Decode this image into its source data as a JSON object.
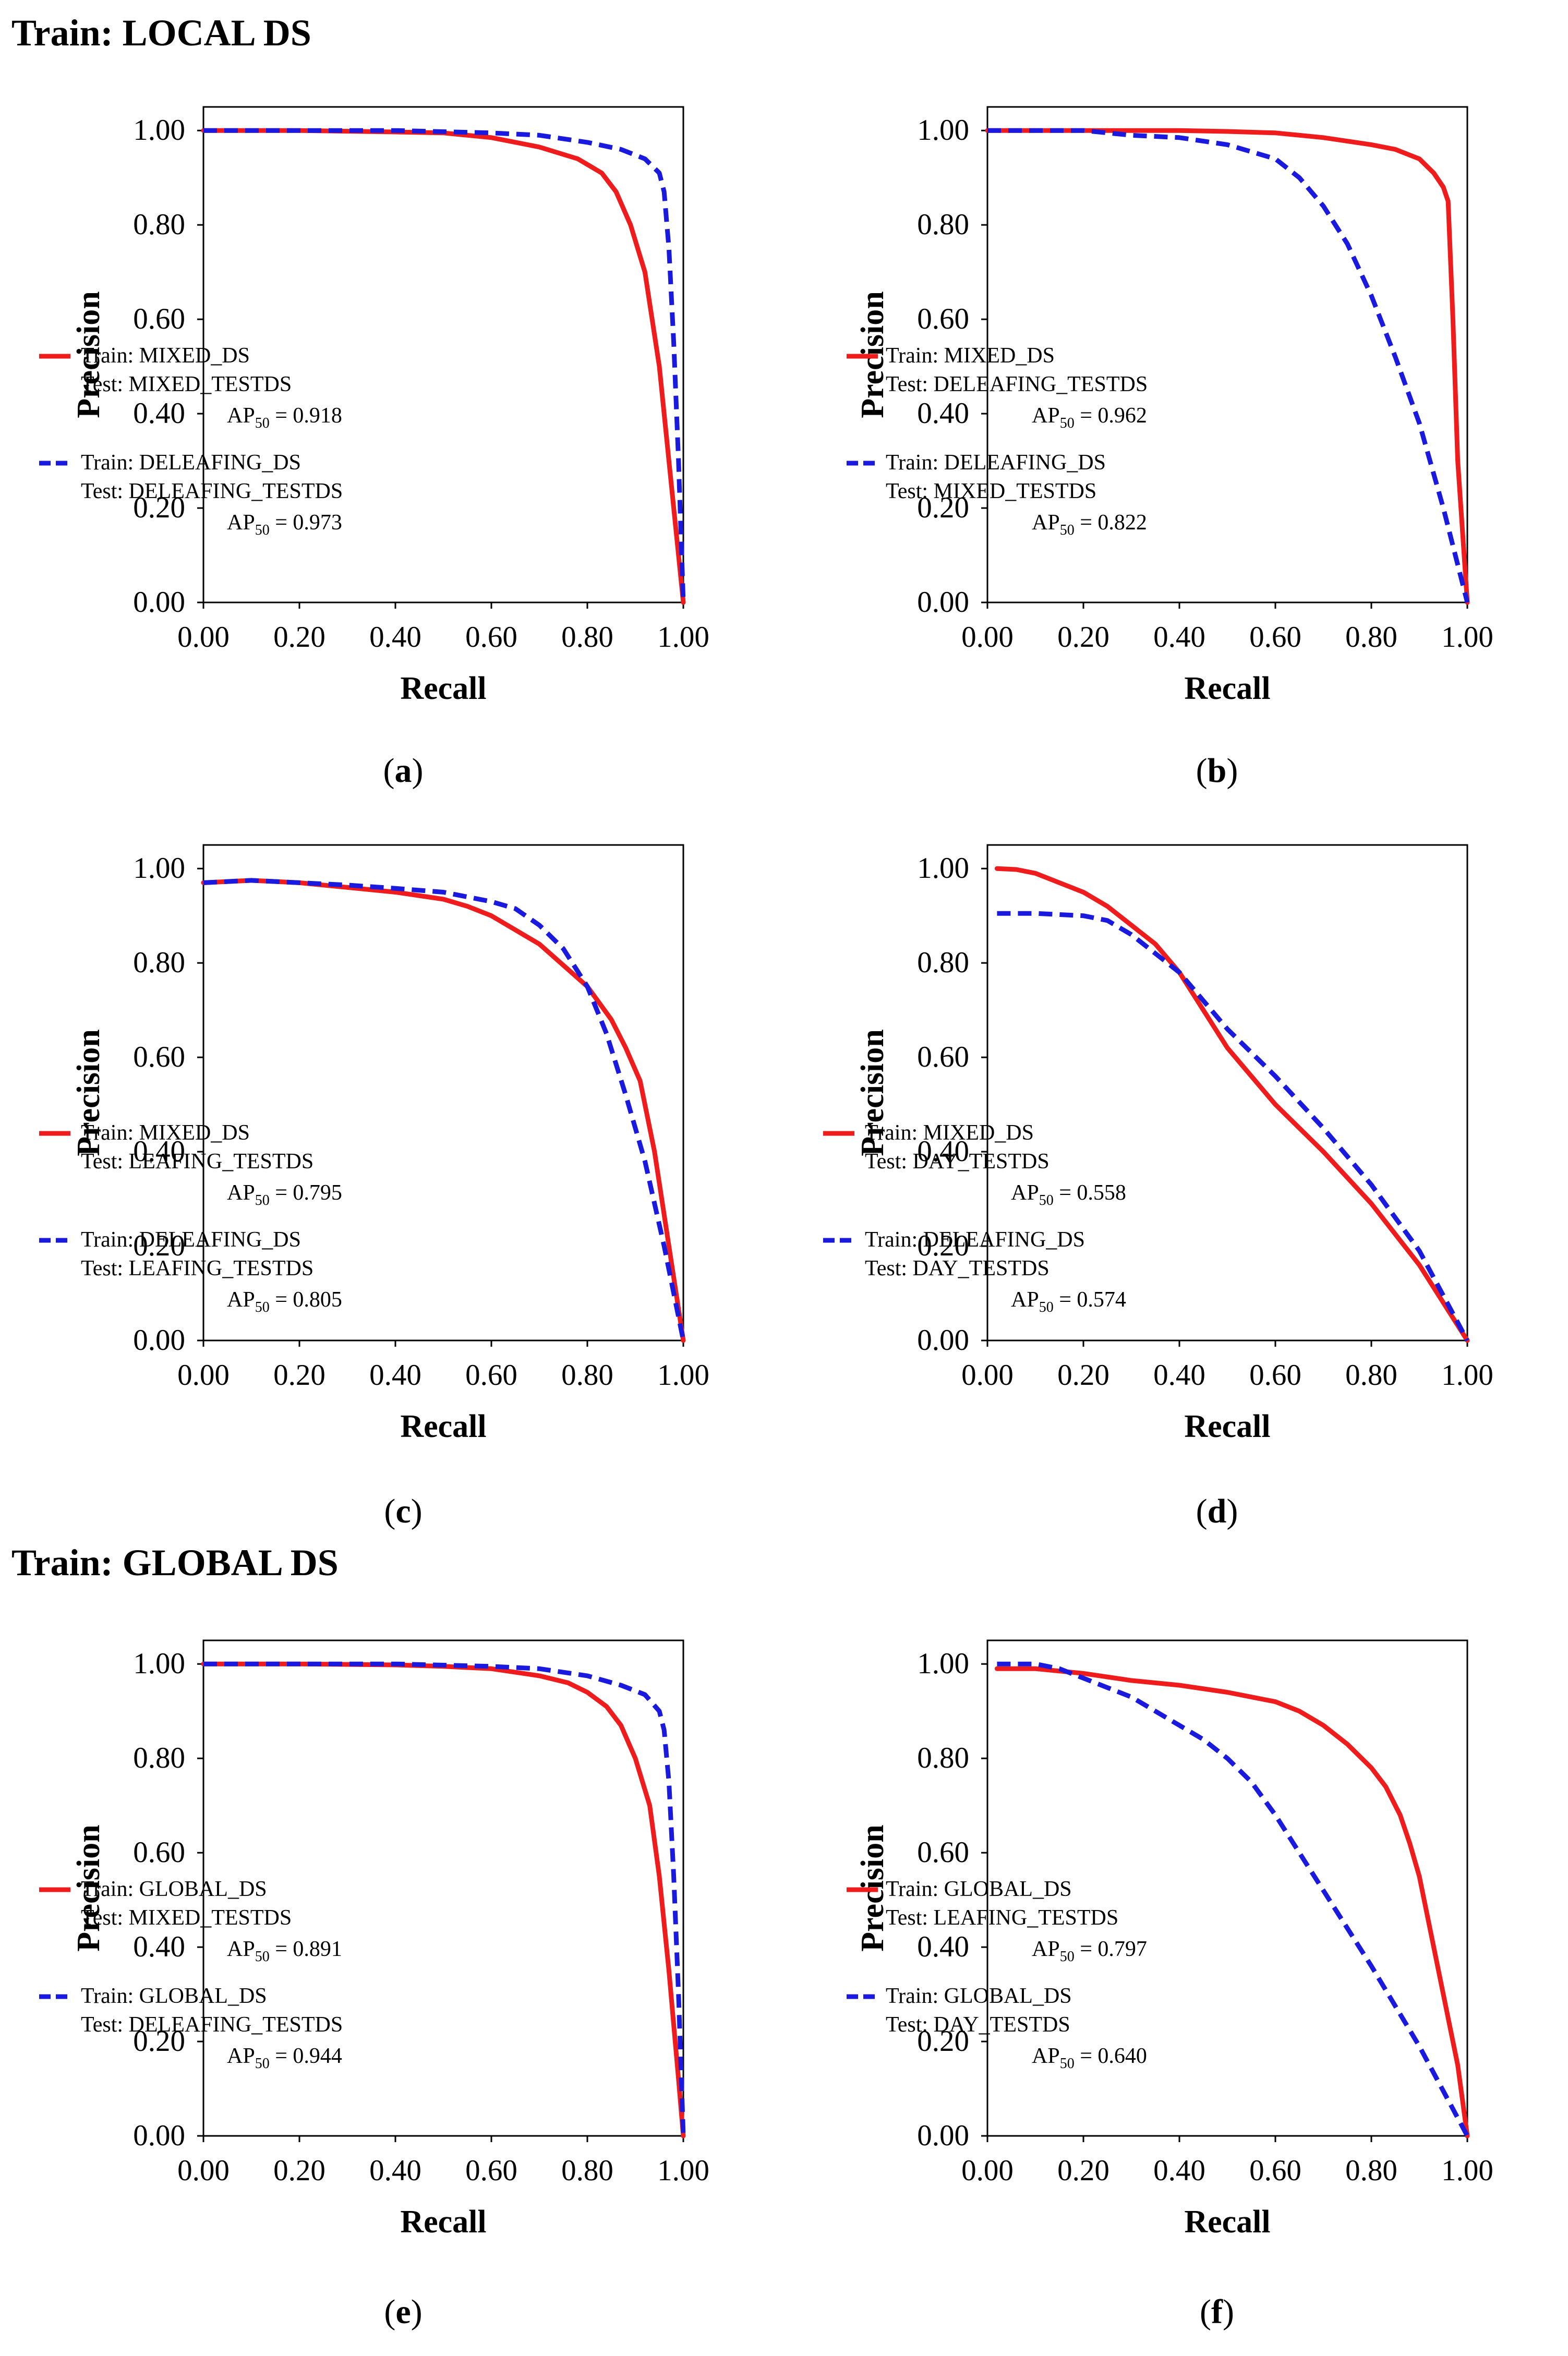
{
  "sections": [
    {
      "title": "Train: LOCAL DS"
    },
    {
      "title": "Train: GLOBAL DS"
    }
  ],
  "colors": {
    "red": "#ee1c1c",
    "blue": "#1a1adf"
  },
  "chart_data": [
    {
      "type": "line",
      "label": "a",
      "xlabel": "Recall",
      "ylabel": "Precision",
      "xlim": [
        0,
        1.0
      ],
      "ylim": [
        0,
        1.05
      ],
      "x_ticks": [
        "0.00",
        "0.20",
        "0.40",
        "0.60",
        "0.80",
        "1.00"
      ],
      "y_ticks": [
        "0.00",
        "0.20",
        "0.40",
        "0.60",
        "0.80",
        "1.00"
      ],
      "legend_position": "left-center",
      "series": [
        {
          "name": "Train: MIXED_DS",
          "train": "Train:  MIXED_DS",
          "test": "Test:  MIXED_TESTDS",
          "ap_value": "= 0.918",
          "style": "solid",
          "color": "#ee1c1c",
          "x": [
            0.0,
            0.2,
            0.4,
            0.5,
            0.6,
            0.7,
            0.78,
            0.83,
            0.86,
            0.89,
            0.92,
            0.95,
            0.97,
            0.99,
            1.0
          ],
          "y": [
            1.0,
            1.0,
            0.997,
            0.995,
            0.985,
            0.965,
            0.94,
            0.91,
            0.87,
            0.8,
            0.7,
            0.5,
            0.3,
            0.1,
            0.0
          ]
        },
        {
          "name": "Train: DELEAFING_DS",
          "train": "Train:  DELEAFING_DS",
          "test": "Test:  DELEAFING_TESTDS",
          "ap_value": "= 0.973",
          "style": "dashed",
          "color": "#1a1adf",
          "x": [
            0.0,
            0.2,
            0.4,
            0.6,
            0.7,
            0.8,
            0.87,
            0.92,
            0.95,
            0.96,
            0.97,
            0.98,
            0.99,
            1.0
          ],
          "y": [
            1.0,
            1.0,
            1.0,
            0.995,
            0.99,
            0.975,
            0.96,
            0.94,
            0.91,
            0.87,
            0.75,
            0.55,
            0.3,
            0.0
          ]
        }
      ]
    },
    {
      "type": "line",
      "label": "b",
      "xlabel": "Recall",
      "ylabel": "Precision",
      "xlim": [
        0,
        1.0
      ],
      "ylim": [
        0,
        1.05
      ],
      "x_ticks": [
        "0.00",
        "0.20",
        "0.40",
        "0.60",
        "0.80",
        "1.00"
      ],
      "y_ticks": [
        "0.00",
        "0.20",
        "0.40",
        "0.60",
        "0.80",
        "1.00"
      ],
      "legend_position": "center",
      "series": [
        {
          "name": "Train: MIXED_DS",
          "train": "Train:  MIXED_DS",
          "test": "Test:  DELEAFING_TESTDS",
          "ap_value": "= 0.962",
          "style": "solid",
          "color": "#ee1c1c",
          "x": [
            0.0,
            0.2,
            0.4,
            0.5,
            0.6,
            0.7,
            0.8,
            0.85,
            0.9,
            0.93,
            0.95,
            0.96,
            0.97,
            0.98,
            1.0
          ],
          "y": [
            1.0,
            1.0,
            1.0,
            0.998,
            0.995,
            0.985,
            0.97,
            0.96,
            0.94,
            0.91,
            0.88,
            0.85,
            0.6,
            0.3,
            0.0
          ]
        },
        {
          "name": "Train: DELEAFING_DS",
          "train": "Train:  DELEAFING_DS",
          "test": "Test:  MIXED_TESTDS",
          "ap_value": "= 0.822",
          "style": "dashed",
          "color": "#1a1adf",
          "x": [
            0.0,
            0.2,
            0.3,
            0.4,
            0.5,
            0.6,
            0.65,
            0.7,
            0.75,
            0.8,
            0.85,
            0.9,
            0.95,
            1.0
          ],
          "y": [
            1.0,
            1.0,
            0.99,
            0.985,
            0.97,
            0.94,
            0.9,
            0.84,
            0.76,
            0.65,
            0.52,
            0.38,
            0.2,
            0.0
          ]
        }
      ]
    },
    {
      "type": "line",
      "label": "c",
      "xlabel": "Recall",
      "ylabel": "Precision",
      "xlim": [
        0,
        1.0
      ],
      "ylim": [
        0,
        1.05
      ],
      "x_ticks": [
        "0.00",
        "0.20",
        "0.40",
        "0.60",
        "0.80",
        "1.00"
      ],
      "y_ticks": [
        "0.00",
        "0.20",
        "0.40",
        "0.60",
        "0.80",
        "1.00"
      ],
      "legend_position": "left-bottom",
      "series": [
        {
          "name": "Train: MIXED_DS",
          "train": "Train:  MIXED_DS",
          "test": "Test:  LEAFING_TESTDS",
          "ap_value": "= 0.795",
          "style": "solid",
          "color": "#ee1c1c",
          "x": [
            0.0,
            0.1,
            0.2,
            0.3,
            0.4,
            0.5,
            0.55,
            0.6,
            0.7,
            0.8,
            0.85,
            0.88,
            0.91,
            0.94,
            0.97,
            1.0
          ],
          "y": [
            0.97,
            0.975,
            0.97,
            0.96,
            0.95,
            0.935,
            0.92,
            0.9,
            0.84,
            0.75,
            0.68,
            0.62,
            0.55,
            0.4,
            0.2,
            0.0
          ]
        },
        {
          "name": "Train: DELEAFING_DS",
          "train": "Train:  DELEAFING_DS",
          "test": "Test:  LEAFING_TESTDS",
          "ap_value": "= 0.805",
          "style": "dashed",
          "color": "#1a1adf",
          "x": [
            0.0,
            0.1,
            0.2,
            0.3,
            0.4,
            0.5,
            0.6,
            0.65,
            0.7,
            0.75,
            0.8,
            0.84,
            0.88,
            0.92,
            0.96,
            1.0
          ],
          "y": [
            0.97,
            0.975,
            0.97,
            0.965,
            0.958,
            0.95,
            0.93,
            0.915,
            0.88,
            0.83,
            0.75,
            0.65,
            0.52,
            0.38,
            0.2,
            0.0
          ]
        }
      ]
    },
    {
      "type": "line",
      "label": "d",
      "xlabel": "Recall",
      "ylabel": "Precision",
      "xlim": [
        0,
        1.0
      ],
      "ylim": [
        0,
        1.05
      ],
      "x_ticks": [
        "0.00",
        "0.20",
        "0.40",
        "0.60",
        "0.80",
        "1.00"
      ],
      "y_ticks": [
        "0.00",
        "0.20",
        "0.40",
        "0.60",
        "0.80",
        "1.00"
      ],
      "legend_position": "left-bottom",
      "series": [
        {
          "name": "Train: MIXED_DS",
          "train": "Train:  MIXED_DS",
          "test": "Test:  DAY_TESTDS",
          "ap_value": "= 0.558",
          "style": "solid",
          "color": "#ee1c1c",
          "x": [
            0.02,
            0.06,
            0.1,
            0.15,
            0.2,
            0.25,
            0.3,
            0.35,
            0.4,
            0.45,
            0.5,
            0.55,
            0.6,
            0.7,
            0.8,
            0.9,
            1.0
          ],
          "y": [
            1.0,
            0.998,
            0.99,
            0.97,
            0.95,
            0.92,
            0.88,
            0.84,
            0.78,
            0.7,
            0.62,
            0.56,
            0.5,
            0.4,
            0.29,
            0.16,
            0.0
          ]
        },
        {
          "name": "Train: DELEAFING_DS",
          "train": "Train:  DELEAFING_DS",
          "test": "Test:  DAY_TESTDS",
          "ap_value": "= 0.574",
          "style": "dashed",
          "color": "#1a1adf",
          "x": [
            0.02,
            0.1,
            0.2,
            0.25,
            0.3,
            0.35,
            0.4,
            0.45,
            0.5,
            0.6,
            0.7,
            0.8,
            0.9,
            1.0
          ],
          "y": [
            0.905,
            0.905,
            0.9,
            0.89,
            0.86,
            0.82,
            0.78,
            0.72,
            0.66,
            0.56,
            0.45,
            0.33,
            0.19,
            0.0
          ]
        }
      ]
    },
    {
      "type": "line",
      "label": "e",
      "xlabel": "Recall",
      "ylabel": "Precision",
      "xlim": [
        0,
        1.0
      ],
      "ylim": [
        0,
        1.05
      ],
      "x_ticks": [
        "0.00",
        "0.20",
        "0.40",
        "0.60",
        "0.80",
        "1.00"
      ],
      "y_ticks": [
        "0.00",
        "0.20",
        "0.40",
        "0.60",
        "0.80",
        "1.00"
      ],
      "legend_position": "left-center",
      "series": [
        {
          "name": "Train: GLOBAL_DS",
          "train": "Train:  GLOBAL_DS",
          "test": "Test:  MIXED_TESTDS",
          "ap_value": "= 0.891",
          "style": "solid",
          "color": "#ee1c1c",
          "x": [
            0.0,
            0.2,
            0.4,
            0.5,
            0.6,
            0.7,
            0.76,
            0.8,
            0.84,
            0.87,
            0.9,
            0.93,
            0.95,
            0.97,
            0.99,
            1.0
          ],
          "y": [
            1.0,
            1.0,
            0.998,
            0.995,
            0.99,
            0.975,
            0.96,
            0.94,
            0.91,
            0.87,
            0.8,
            0.7,
            0.55,
            0.35,
            0.12,
            0.0
          ]
        },
        {
          "name": "Train: GLOBAL_DS",
          "train": "Train:  GLOBAL_DS",
          "test": "Test:  DELEAFING_TESTDS",
          "ap_value": "= 0.944",
          "style": "dashed",
          "color": "#1a1adf",
          "x": [
            0.0,
            0.2,
            0.4,
            0.6,
            0.7,
            0.8,
            0.87,
            0.92,
            0.95,
            0.96,
            0.97,
            0.98,
            0.99,
            1.0
          ],
          "y": [
            1.0,
            1.0,
            1.0,
            0.995,
            0.99,
            0.975,
            0.955,
            0.935,
            0.9,
            0.86,
            0.75,
            0.55,
            0.3,
            0.0
          ]
        }
      ]
    },
    {
      "type": "line",
      "label": "f",
      "xlabel": "Recall",
      "ylabel": "Precision",
      "xlim": [
        0,
        1.0
      ],
      "ylim": [
        0,
        1.05
      ],
      "x_ticks": [
        "0.00",
        "0.20",
        "0.40",
        "0.60",
        "0.80",
        "1.00"
      ],
      "y_ticks": [
        "0.00",
        "0.20",
        "0.40",
        "0.60",
        "0.80",
        "1.00"
      ],
      "legend_position": "center",
      "series": [
        {
          "name": "Train: GLOBAL_DS",
          "train": "Train:  GLOBAL_DS",
          "test": "Test:  LEAFING_TESTDS",
          "ap_value": "= 0.797",
          "style": "solid",
          "color": "#ee1c1c",
          "x": [
            0.02,
            0.1,
            0.2,
            0.3,
            0.4,
            0.5,
            0.6,
            0.65,
            0.7,
            0.75,
            0.8,
            0.83,
            0.86,
            0.88,
            0.9,
            0.92,
            0.95,
            0.98,
            1.0
          ],
          "y": [
            0.99,
            0.99,
            0.98,
            0.965,
            0.955,
            0.94,
            0.92,
            0.9,
            0.87,
            0.83,
            0.78,
            0.74,
            0.68,
            0.62,
            0.55,
            0.45,
            0.3,
            0.15,
            0.0
          ]
        },
        {
          "name": "Train: GLOBAL_DS",
          "train": "Train:  GLOBAL_DS",
          "test": "Test:  DAY_TESTDS",
          "ap_value": "= 0.640",
          "style": "dashed",
          "color": "#1a1adf",
          "x": [
            0.02,
            0.1,
            0.15,
            0.2,
            0.25,
            0.3,
            0.35,
            0.4,
            0.45,
            0.5,
            0.55,
            0.6,
            0.7,
            0.8,
            0.9,
            1.0
          ],
          "y": [
            1.0,
            1.0,
            0.99,
            0.97,
            0.95,
            0.93,
            0.9,
            0.87,
            0.84,
            0.8,
            0.75,
            0.68,
            0.52,
            0.36,
            0.19,
            0.0
          ]
        }
      ]
    }
  ],
  "captions": [
    "a",
    "b",
    "c",
    "d",
    "e",
    "f"
  ],
  "ap_prefix": "AP",
  "ap_subscript": "50"
}
